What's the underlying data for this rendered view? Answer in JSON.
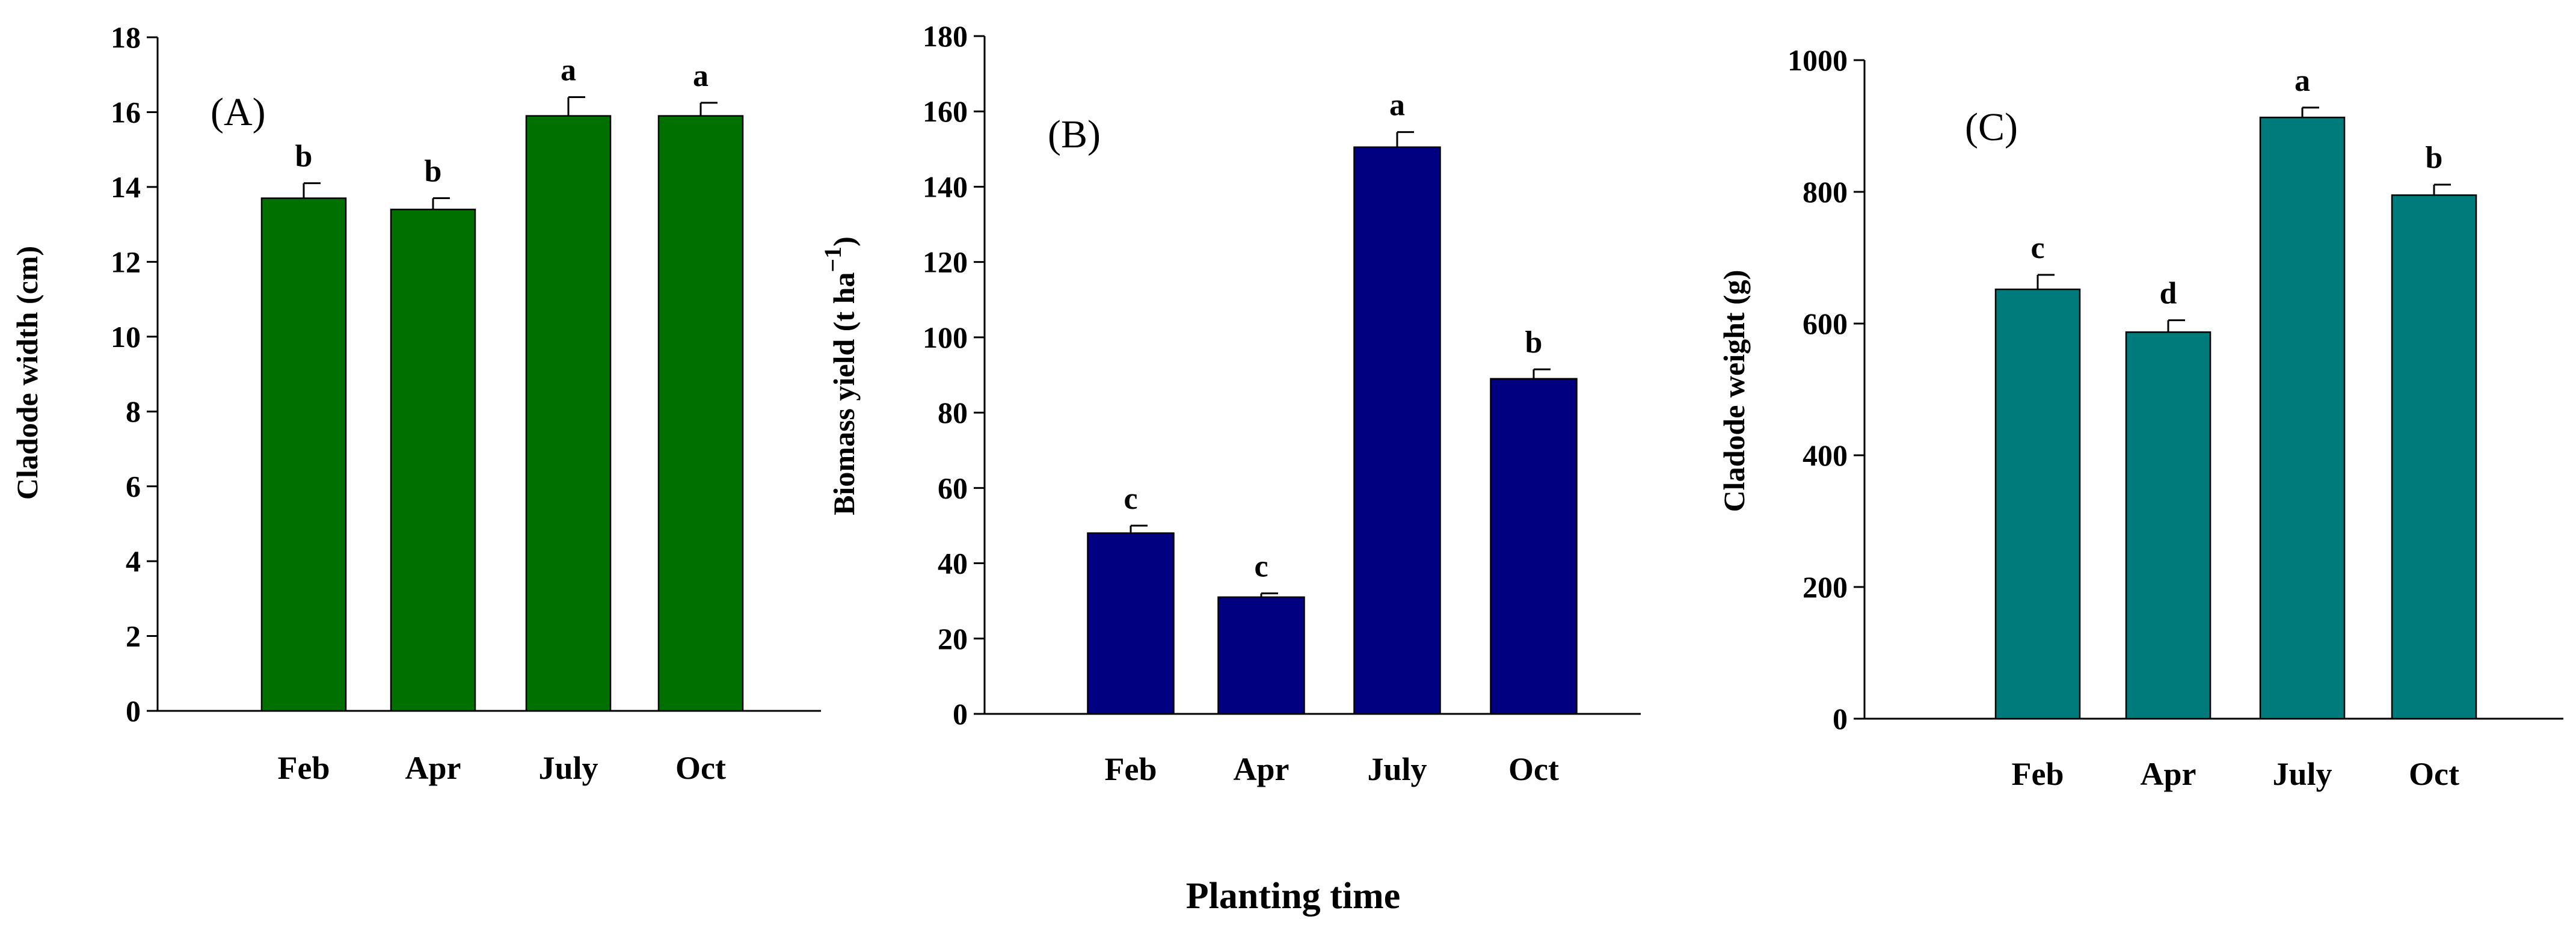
{
  "figure": {
    "common_xlabel": "Planting time"
  },
  "chart_data": [
    {
      "type": "bar",
      "panel_label": "(A)",
      "categories": [
        "Feb",
        "Apr",
        "July",
        "Oct"
      ],
      "values": [
        13.7,
        13.4,
        15.9,
        15.9
      ],
      "errors": [
        0.4,
        0.3,
        0.5,
        0.35
      ],
      "significance": [
        "b",
        "b",
        "a",
        "a"
      ],
      "ylabel": "Cladode width (cm)",
      "ylim": [
        0,
        18
      ],
      "yticks": [
        0,
        2,
        4,
        6,
        8,
        10,
        12,
        14,
        16,
        18
      ],
      "bar_color": "#007000"
    },
    {
      "type": "bar",
      "panel_label": "(B)",
      "categories": [
        "Feb",
        "Apr",
        "July",
        "Oct"
      ],
      "values": [
        48,
        31,
        150.5,
        89
      ],
      "errors": [
        2,
        1,
        4,
        2.5
      ],
      "significance": [
        "c",
        "c",
        "a",
        "b"
      ],
      "ylabel": "Biomass yield (t ha",
      "ylabel_superscript": "−1",
      "ylabel_suffix": ")",
      "ylim": [
        0,
        180
      ],
      "yticks": [
        0,
        20,
        40,
        60,
        80,
        100,
        120,
        140,
        160,
        180
      ],
      "bar_color": "#000080"
    },
    {
      "type": "bar",
      "panel_label": "(C)",
      "categories": [
        "Feb",
        "Apr",
        "July",
        "Oct"
      ],
      "values": [
        652,
        587,
        913,
        795
      ],
      "errors": [
        22,
        18,
        15,
        16
      ],
      "significance": [
        "c",
        "d",
        "a",
        "b"
      ],
      "ylabel": "Cladode weight (g)",
      "ylim": [
        0,
        1000
      ],
      "yticks": [
        0,
        200,
        400,
        600,
        800,
        1000
      ],
      "bar_color": "#007B7B"
    }
  ]
}
